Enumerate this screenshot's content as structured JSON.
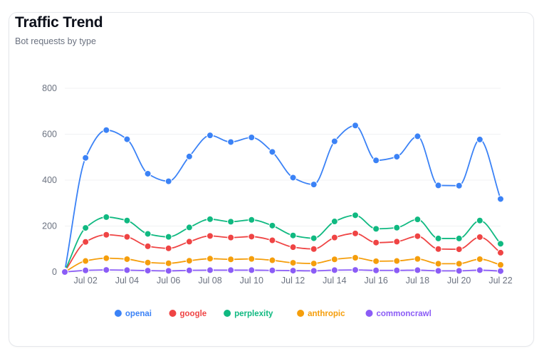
{
  "card": {
    "title": "Traffic Trend",
    "subtitle": "Bot requests by type"
  },
  "chart_data": {
    "type": "line",
    "title": "Traffic Trend",
    "subtitle": "Bot requests by type",
    "x": [
      "Jul 01",
      "Jul 02",
      "Jul 03",
      "Jul 04",
      "Jul 05",
      "Jul 06",
      "Jul 07",
      "Jul 08",
      "Jul 09",
      "Jul 10",
      "Jul 11",
      "Jul 12",
      "Jul 13",
      "Jul 14",
      "Jul 15",
      "Jul 16",
      "Jul 17",
      "Jul 18",
      "Jul 19",
      "Jul 20",
      "Jul 21",
      "Jul 22"
    ],
    "x_tick_labels": [
      "Jul 02",
      "Jul 04",
      "Jul 06",
      "Jul 08",
      "Jul 10",
      "Jul 12",
      "Jul 14",
      "Jul 16",
      "Jul 18",
      "Jul 20",
      "Jul 22"
    ],
    "y_ticks": [
      0,
      200,
      400,
      600,
      800
    ],
    "ylim": [
      0,
      800
    ],
    "grid": "horizontal",
    "legend_position": "bottom-center",
    "curve": "smooth",
    "series": [
      {
        "name": "openai",
        "color": "#3b82f6",
        "values": [
          5,
          497,
          618,
          578,
          428,
          395,
          503,
          595,
          566,
          586,
          523,
          411,
          381,
          569,
          638,
          486,
          502,
          591,
          377,
          376,
          577,
          318
        ]
      },
      {
        "name": "google",
        "color": "#ef4444",
        "values": [
          3,
          131,
          162,
          153,
          112,
          103,
          132,
          157,
          150,
          154,
          138,
          108,
          100,
          150,
          168,
          128,
          132,
          156,
          100,
          99,
          152,
          84
        ]
      },
      {
        "name": "perplexity",
        "color": "#10b981",
        "values": [
          4,
          192,
          239,
          224,
          166,
          153,
          194,
          230,
          219,
          227,
          202,
          159,
          147,
          220,
          247,
          188,
          193,
          229,
          146,
          146,
          224,
          123
        ]
      },
      {
        "name": "anthropic",
        "color": "#f59e0b",
        "values": [
          1,
          48,
          60,
          56,
          41,
          38,
          49,
          58,
          55,
          57,
          51,
          40,
          37,
          55,
          62,
          47,
          48,
          57,
          36,
          36,
          56,
          31
        ]
      },
      {
        "name": "commoncrawl",
        "color": "#8b5cf6",
        "values": [
          0,
          7,
          9,
          8,
          6,
          5,
          7,
          8,
          8,
          8,
          7,
          6,
          5,
          8,
          9,
          7,
          7,
          8,
          5,
          5,
          8,
          4
        ]
      }
    ]
  },
  "colors": {
    "grid": "#f0f1f3",
    "axis_text": "#6b7280",
    "card_border": "#e5e7eb"
  }
}
